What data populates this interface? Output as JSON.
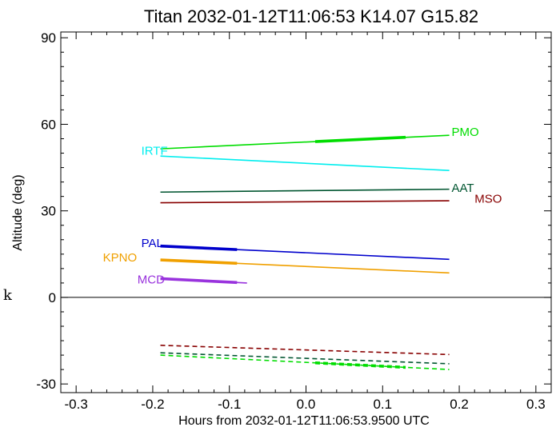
{
  "chart_data": {
    "type": "line",
    "title": "Titan 2032-01-12T11:06:53  K14.07  G15.82",
    "xlabel": "Hours from 2032-01-12T11:06:53.9500 UTC",
    "ylabel": "Altitude (deg)",
    "xlim": [
      -0.32,
      0.32
    ],
    "ylim": [
      -33,
      92
    ],
    "xticks": [
      -0.3,
      -0.2,
      -0.1,
      0.0,
      0.1,
      0.2,
      0.3
    ],
    "xtick_labels": [
      "-0.3",
      "-0.2",
      "-0.1",
      "0.0",
      "0.1",
      "0.2",
      "0.3"
    ],
    "yticks": [
      -30,
      0,
      30,
      60,
      90
    ],
    "ytick_labels": [
      "-30",
      "0",
      "30",
      "60",
      "90"
    ],
    "zero_line": true,
    "grid": false,
    "side_mark": "k",
    "series": [
      {
        "name": "PMO",
        "color": "#00dd00",
        "style": "solid",
        "x": [
          -0.19,
          0.187
        ],
        "y": [
          51.5,
          56.2
        ],
        "thick": [
          0.012,
          0.13
        ],
        "label_at": [
          0.19,
          57.3
        ]
      },
      {
        "name": "IRTF",
        "color": "#00eeee",
        "style": "solid",
        "x": [
          -0.19,
          0.187
        ],
        "y": [
          49.0,
          44.0
        ],
        "label_at": [
          -0.215,
          50.8
        ]
      },
      {
        "name": "AAT",
        "color": "#005530",
        "style": "solid",
        "x": [
          -0.19,
          0.187
        ],
        "y": [
          36.5,
          37.5
        ],
        "label_at": [
          0.19,
          38.0
        ]
      },
      {
        "name": "MSO",
        "color": "#880000",
        "style": "solid",
        "x": [
          -0.19,
          0.187
        ],
        "y": [
          32.8,
          33.5
        ],
        "label_at": [
          0.22,
          34.2
        ]
      },
      {
        "name": "PAL",
        "color": "#0000cc",
        "style": "solid",
        "x": [
          -0.19,
          0.187
        ],
        "y": [
          17.8,
          13.2
        ],
        "thick": [
          -0.19,
          -0.09
        ],
        "label_at": [
          -0.215,
          18.8
        ]
      },
      {
        "name": "KPNO",
        "color": "#f0a000",
        "style": "solid",
        "x": [
          -0.19,
          0.187
        ],
        "y": [
          13.0,
          8.5
        ],
        "thick": [
          -0.19,
          -0.09
        ],
        "label_at": [
          -0.265,
          13.9
        ]
      },
      {
        "name": "MCD",
        "color": "#9933dd",
        "style": "solid",
        "x": [
          -0.19,
          -0.077
        ],
        "y": [
          6.5,
          5.0
        ],
        "thick": [
          -0.19,
          -0.09
        ],
        "label_at": [
          -0.22,
          6.2
        ]
      },
      {
        "name": "",
        "color": "#880000",
        "style": "dashed",
        "x": [
          -0.19,
          0.187
        ],
        "y": [
          -16.6,
          -19.8
        ]
      },
      {
        "name": "",
        "color": "#005530",
        "style": "dashed",
        "x": [
          -0.19,
          0.187
        ],
        "y": [
          -19.2,
          -23.0
        ]
      },
      {
        "name": "",
        "color": "#00dd00",
        "style": "dashed",
        "x": [
          -0.19,
          0.187
        ],
        "y": [
          -20.0,
          -25.0
        ],
        "thick": [
          0.012,
          0.13
        ]
      }
    ]
  }
}
